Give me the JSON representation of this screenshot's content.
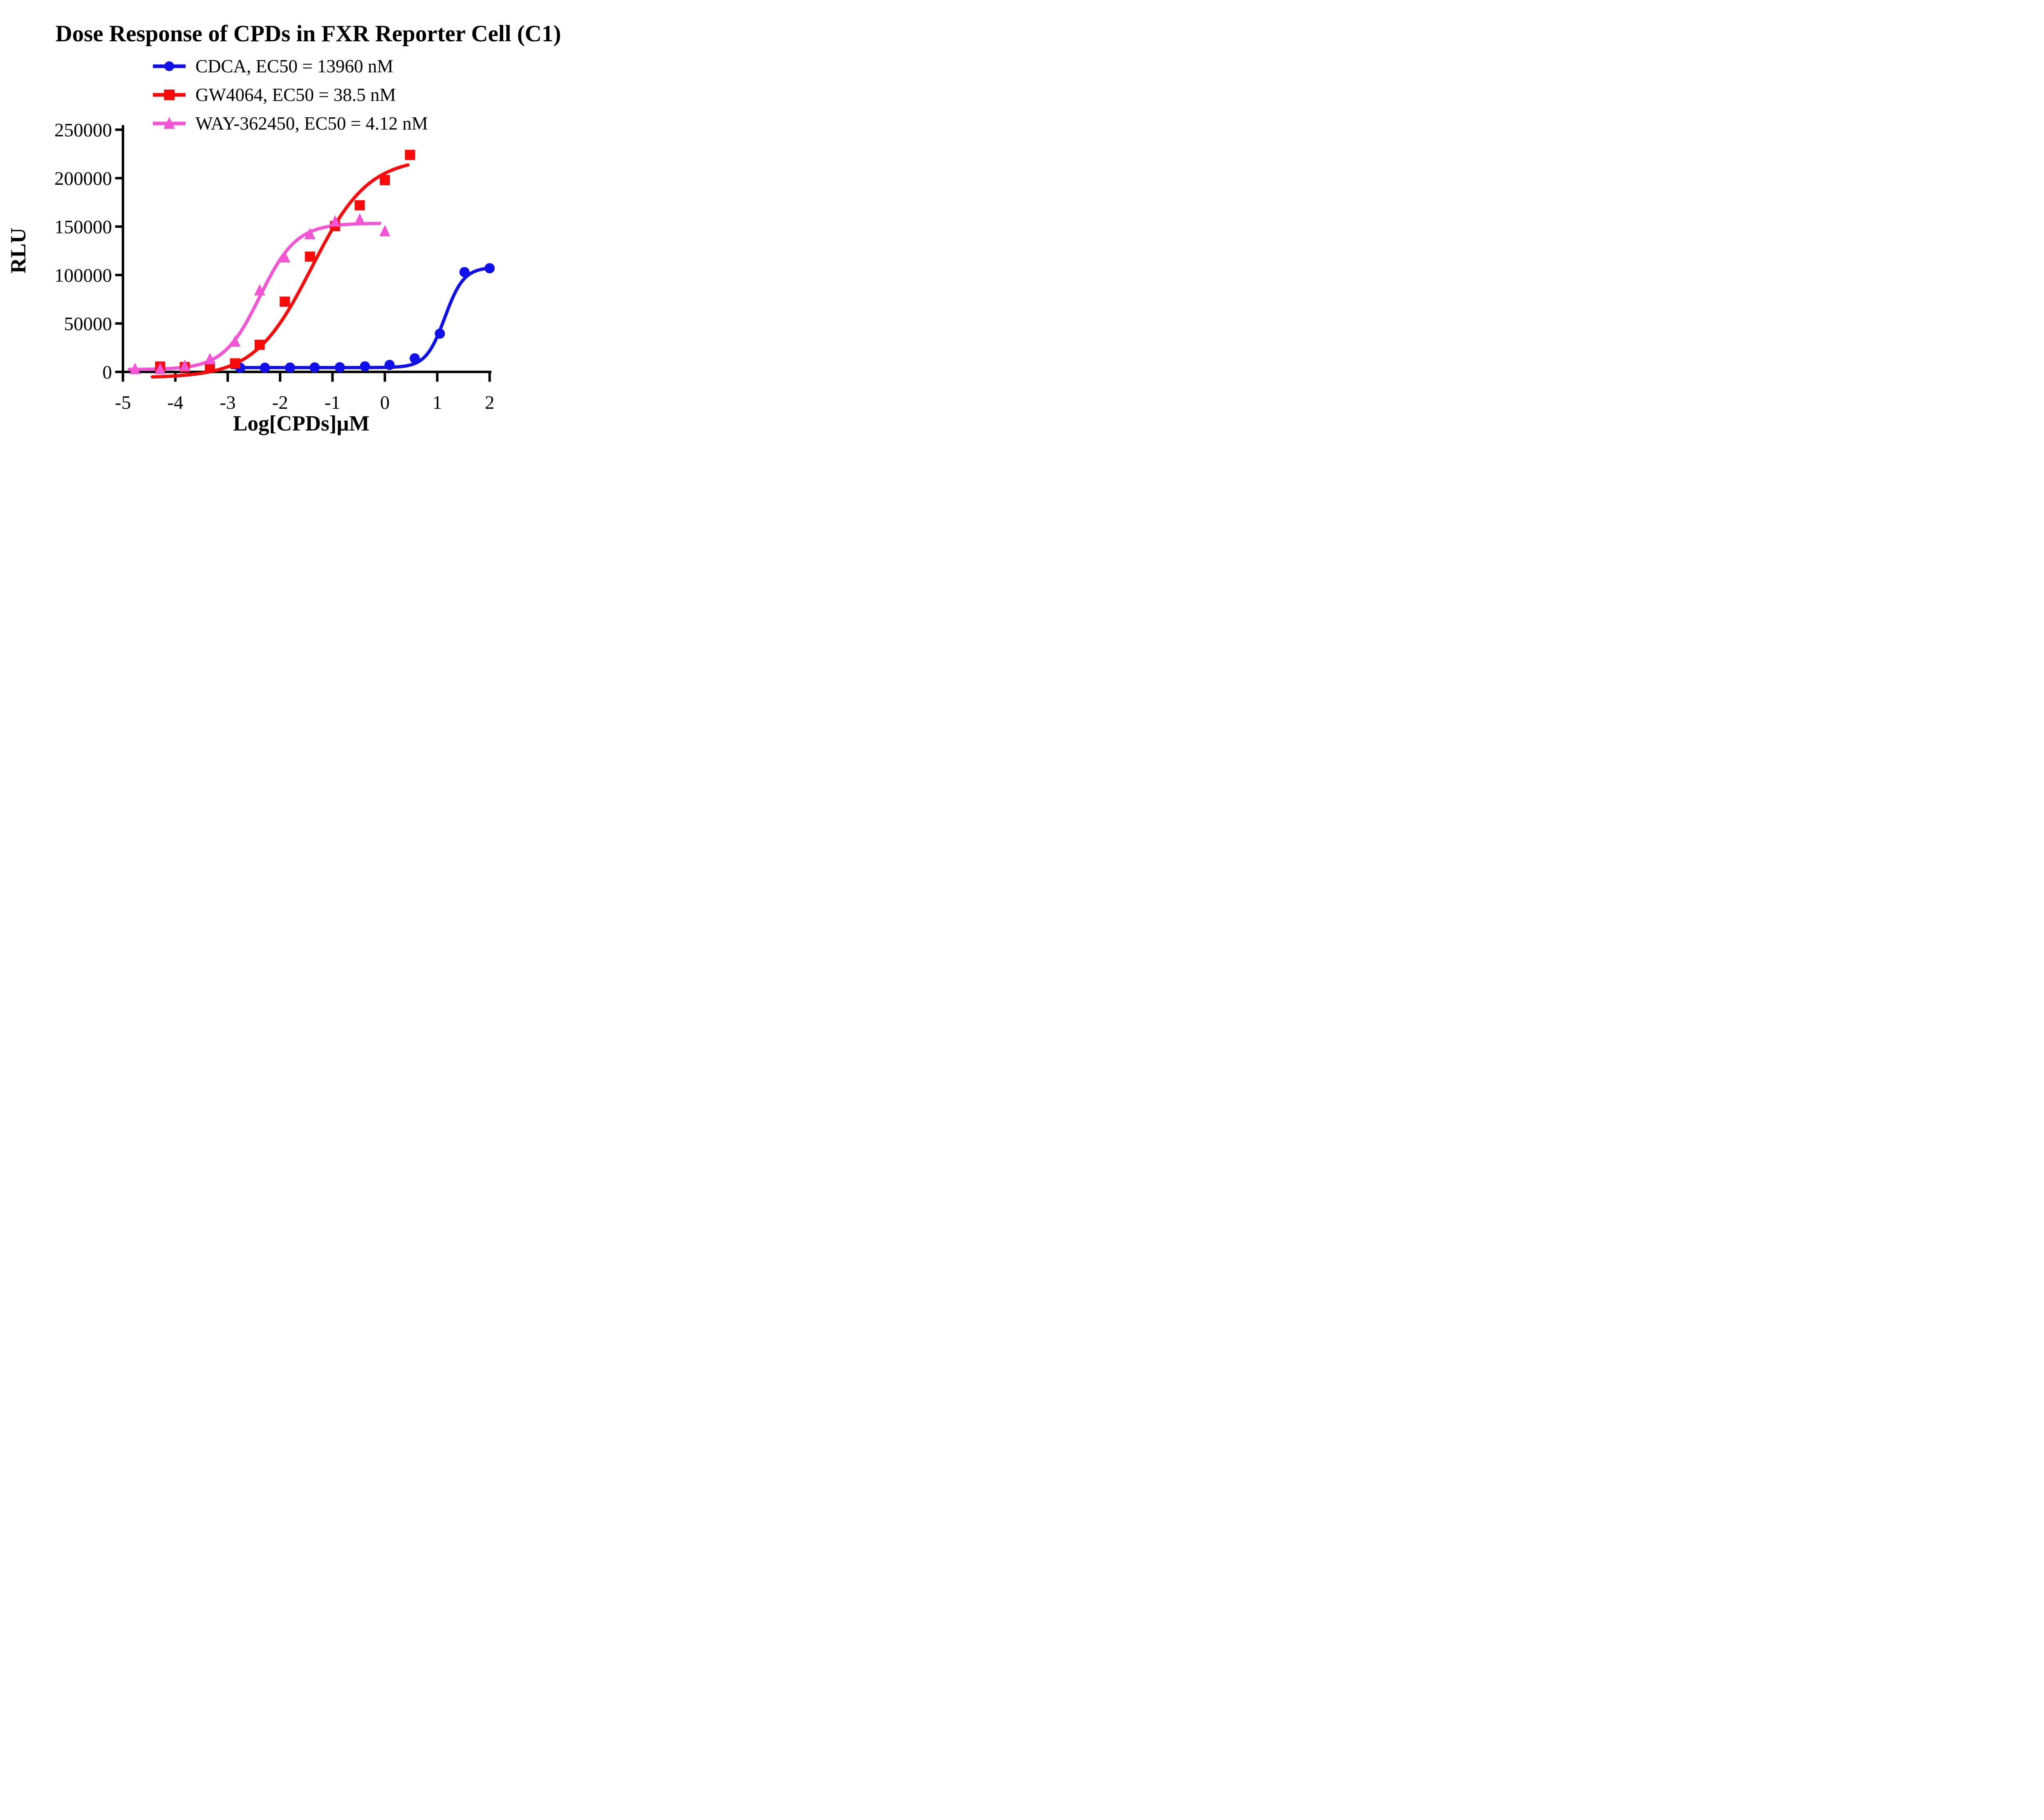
{
  "title": "Dose Response of CPDs in FXR Reporter Cell (C1)",
  "axes": {
    "x": {
      "label": "Log[CPDs]µM",
      "min": -5,
      "max": 2,
      "ticks": [
        -5,
        -4,
        -3,
        -2,
        -1,
        0,
        1,
        2
      ]
    },
    "y": {
      "label": "RLU",
      "min": 0,
      "max": 250000,
      "ticks": [
        0,
        50000,
        100000,
        150000,
        200000,
        250000
      ]
    }
  },
  "chart_data": {
    "type": "scatter",
    "title": "Dose Response of CPDs in FXR Reporter Cell (C1)",
    "xlabel": "Log[CPDs]µM",
    "ylabel": "RLU",
    "xlim": [
      -5,
      2
    ],
    "ylim": [
      0,
      250000
    ],
    "grid": false,
    "legend_position": "top-center-above-plot",
    "series": [
      {
        "id": "cdca",
        "name": "CDCA, EC50 = 13960 nM",
        "compound": "CDCA",
        "ec50_nM": 13960,
        "color": "#1010E8",
        "marker": "circle",
        "x": [
          -2.76,
          -2.29,
          -1.81,
          -1.34,
          -0.86,
          -0.38,
          0.09,
          0.57,
          1.05,
          1.52,
          2.0
        ],
        "y": [
          4200,
          4300,
          4500,
          4600,
          4800,
          5700,
          7200,
          14000,
          39500,
          103000,
          107000
        ],
        "fit": {
          "bottom": 4500,
          "top": 108000,
          "log_ec50": 1.145,
          "hill": 2.4
        },
        "curve_range": [
          -2.92,
          2.03
        ]
      },
      {
        "id": "gw4064",
        "name": "GW4064, EC50 = 38.5 nM",
        "compound": "GW4064",
        "ec50_nM": 38.5,
        "color": "#F80B0B",
        "marker": "square",
        "x": [
          -4.29,
          -3.82,
          -3.34,
          -2.86,
          -2.39,
          -1.91,
          -1.43,
          -0.95,
          -0.48,
          0.0,
          0.48
        ],
        "y": [
          5500,
          5000,
          5400,
          8800,
          28000,
          72500,
          119000,
          150500,
          172000,
          198000,
          224000
        ],
        "fit": {
          "bottom": -6000,
          "top": 221000,
          "log_ec50": -1.4,
          "hill": 0.8
        },
        "curve_range": [
          -4.44,
          0.45
        ]
      },
      {
        "id": "way362450",
        "name": "WAY-362450, EC50 = 4.12 nM",
        "compound": "WAY-362450",
        "ec50_nM": 4.12,
        "color": "#F356D4",
        "marker": "triangle",
        "x": [
          -4.77,
          -4.29,
          -3.82,
          -3.34,
          -2.86,
          -2.39,
          -1.91,
          -1.43,
          -0.95,
          -0.48,
          0.0
        ],
        "y": [
          2700,
          2800,
          6000,
          13000,
          31000,
          84000,
          118000,
          142000,
          155000,
          157000,
          145000
        ],
        "fit": {
          "bottom": 2500,
          "top": 153500,
          "log_ec50": -2.385,
          "hill": 1.25
        },
        "curve_range": [
          -4.88,
          -0.1
        ]
      }
    ]
  }
}
